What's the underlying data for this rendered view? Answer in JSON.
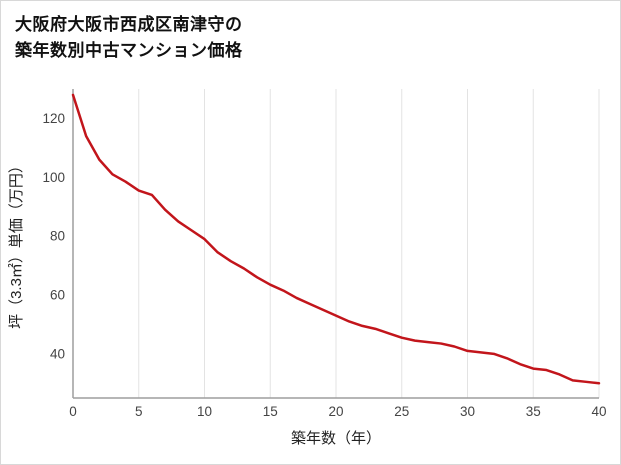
{
  "title": {
    "line1": "大阪府大阪市西成区南津守の",
    "line2": "築年数別中古マンション価格"
  },
  "chart_data": {
    "type": "line",
    "title": "大阪府大阪市西成区南津守の築年数別中古マンション価格",
    "xlabel": "築年数（年）",
    "ylabel": "坪（3.3㎡）単価（万円）",
    "x": [
      0,
      1,
      2,
      3,
      4,
      5,
      6,
      7,
      8,
      9,
      10,
      11,
      12,
      13,
      14,
      15,
      16,
      17,
      18,
      19,
      20,
      21,
      22,
      23,
      24,
      25,
      26,
      27,
      28,
      29,
      30,
      31,
      32,
      33,
      34,
      35,
      36,
      37,
      38,
      39,
      40
    ],
    "values": [
      128,
      114,
      106,
      101,
      98.5,
      95.5,
      94,
      89,
      85,
      82,
      79,
      74.5,
      71.5,
      69,
      66,
      63.5,
      61.5,
      59,
      57,
      55,
      53,
      51,
      49.5,
      48.5,
      47,
      45.5,
      44.5,
      44,
      43.5,
      42.5,
      41,
      40.5,
      40,
      38.5,
      36.5,
      35,
      34.5,
      33,
      31,
      30.5,
      30
    ],
    "xlim": [
      0,
      40
    ],
    "ylim": [
      25,
      130
    ],
    "xticks": [
      0,
      5,
      10,
      15,
      20,
      25,
      30,
      35,
      40
    ],
    "yticks": [
      40,
      60,
      80,
      100,
      120
    ],
    "grid": "vertical-only",
    "legend_position": "none",
    "colors": {
      "line": "#c2151b",
      "grid": "#e3e3e3",
      "axis": "#9e9e9e",
      "tick": "#444444",
      "label": "#222222"
    }
  }
}
